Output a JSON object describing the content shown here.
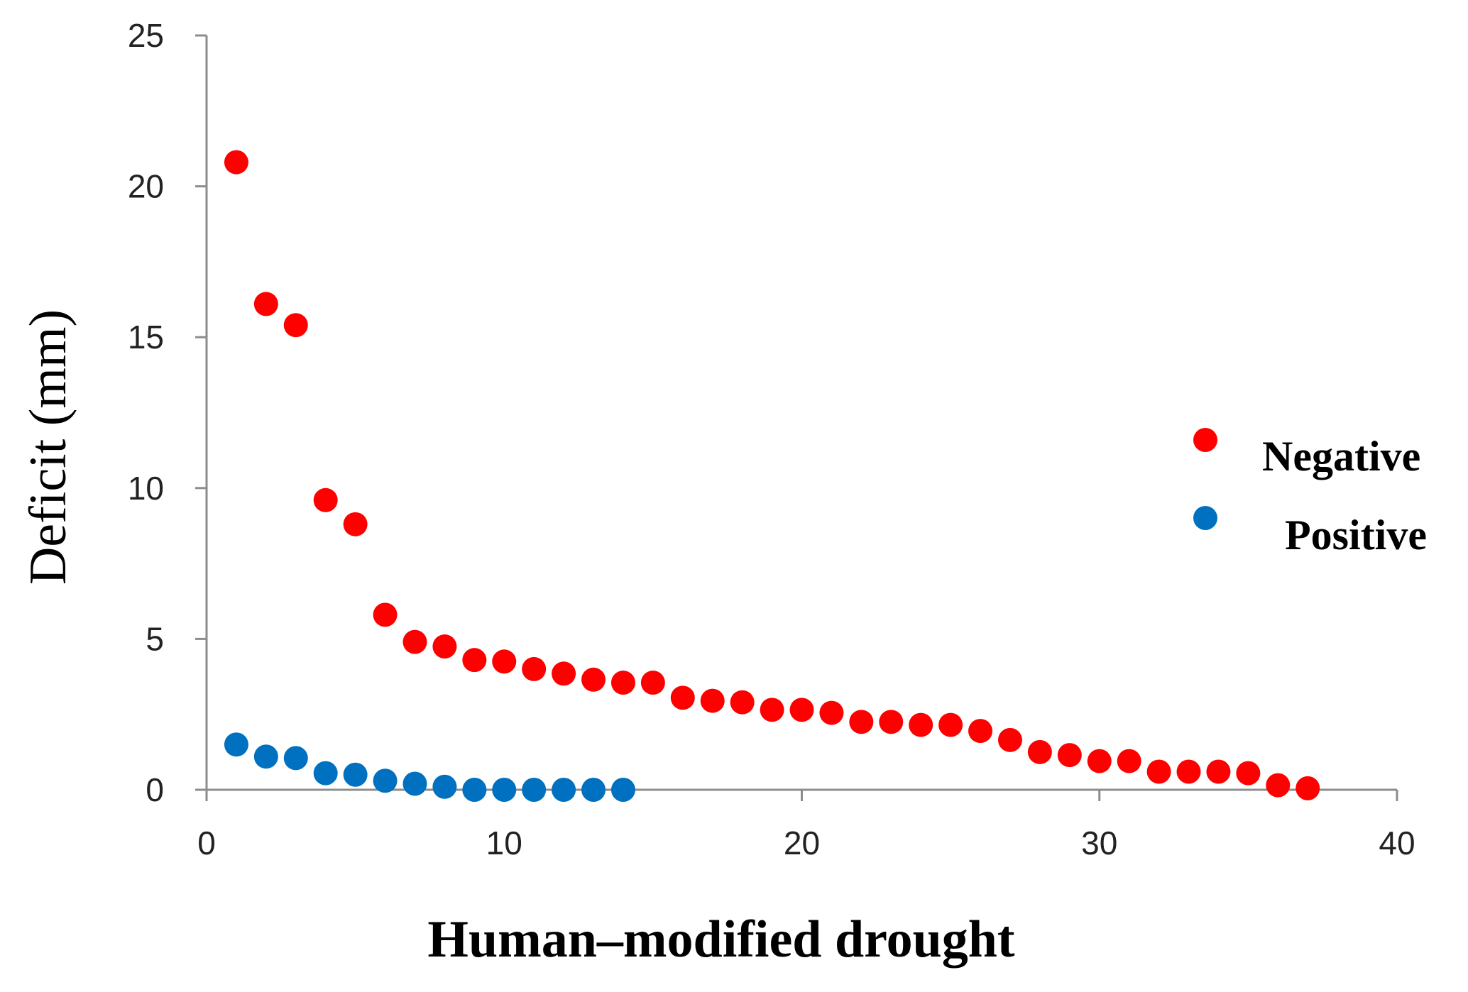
{
  "chart_data": {
    "type": "scatter",
    "title": "",
    "xlabel": "Human–modified drought",
    "ylabel": "Deficit (mm)",
    "xlim": [
      0,
      40
    ],
    "ylim": [
      0,
      25
    ],
    "xticks": [
      0,
      10,
      20,
      30,
      40
    ],
    "yticks": [
      0,
      5,
      10,
      15,
      20,
      25
    ],
    "grid": false,
    "legend_position": "right",
    "series": [
      {
        "name": "Negative",
        "color": "#ff0000",
        "x": [
          1,
          2,
          3,
          4,
          5,
          6,
          7,
          8,
          9,
          10,
          11,
          12,
          13,
          14,
          15,
          16,
          17,
          18,
          19,
          20,
          21,
          22,
          23,
          24,
          25,
          26,
          27,
          28,
          29,
          30,
          31,
          32,
          33,
          34,
          35,
          36,
          37
        ],
        "y": [
          20.8,
          16.1,
          15.4,
          9.6,
          8.8,
          5.8,
          4.9,
          4.75,
          4.3,
          4.25,
          4.0,
          3.85,
          3.65,
          3.55,
          3.55,
          3.05,
          2.95,
          2.9,
          2.65,
          2.65,
          2.55,
          2.25,
          2.25,
          2.15,
          2.15,
          1.95,
          1.65,
          1.25,
          1.15,
          0.95,
          0.95,
          0.6,
          0.6,
          0.6,
          0.55,
          0.15,
          0.05
        ]
      },
      {
        "name": "Positive",
        "color": "#0070c0",
        "x": [
          1,
          2,
          3,
          4,
          5,
          6,
          7,
          8,
          9,
          10,
          11,
          12,
          13,
          14
        ],
        "y": [
          1.5,
          1.1,
          1.05,
          0.55,
          0.5,
          0.3,
          0.2,
          0.1,
          0.0,
          0.0,
          0.0,
          0.0,
          0.0,
          0.0
        ]
      }
    ]
  }
}
